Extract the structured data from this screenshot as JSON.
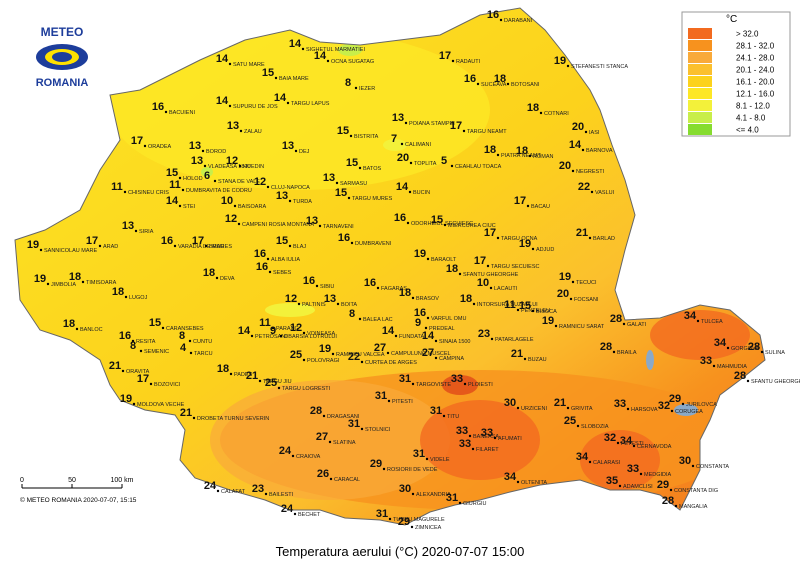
{
  "logo": {
    "top": "METEO",
    "bottom": "ROMANIA"
  },
  "title": "Temperatura aerului (°C) 2020-07-07 15:00",
  "copyright": "© METEO ROMANIA 2020-07-07, 15:15",
  "scale": {
    "labels": [
      "0",
      "50",
      "100 km"
    ]
  },
  "legend": {
    "unit": "°C",
    "items": [
      {
        "label": "> 32.0",
        "color": "#f26a1f"
      },
      {
        "label": "28.1 - 32.0",
        "color": "#f7921e"
      },
      {
        "label": "24.1 - 28.0",
        "color": "#f9aa3a"
      },
      {
        "label": "20.1 - 24.0",
        "color": "#fbc02d"
      },
      {
        "label": "16.1 - 20.0",
        "color": "#fcd21c"
      },
      {
        "label": "12.1 - 16.0",
        "color": "#fde725"
      },
      {
        "label": "8.1 - 12.0",
        "color": "#f3f13a"
      },
      {
        "label": "4.1 - 8.0",
        "color": "#c8ee4a"
      },
      {
        "label": "<= 4.0",
        "color": "#86dc2f"
      }
    ]
  },
  "stations": [
    {
      "name": "DARABANI",
      "value": 16
    },
    {
      "name": "SIGHETUL MARMATIEI",
      "value": 14
    },
    {
      "name": "SATU MARE",
      "value": 14
    },
    {
      "name": "BAIA MARE",
      "value": 15
    },
    {
      "name": "OCNA SUGATAG",
      "value": 14
    },
    {
      "name": "RADAUTI",
      "value": 17
    },
    {
      "name": "STEFANESTI STANCA",
      "value": 19
    },
    {
      "name": "IEZER",
      "value": 8
    },
    {
      "name": "BOTOSANI",
      "value": 18
    },
    {
      "name": "SUCEAVA",
      "value": 16
    },
    {
      "name": "SUPURU DE JOS",
      "value": 14
    },
    {
      "name": "TARGU LAPUS",
      "value": 14
    },
    {
      "name": "COTNARI",
      "value": 18
    },
    {
      "name": "POIANA STAMPEI",
      "value": 13
    },
    {
      "name": "BACUIENI",
      "value": 16
    },
    {
      "name": "ZALAU",
      "value": 13
    },
    {
      "name": "BISTRITA",
      "value": 15
    },
    {
      "name": "TARGU NEAMT",
      "value": 17
    },
    {
      "name": "IASI",
      "value": 20
    },
    {
      "name": "ORADEA",
      "value": 17
    },
    {
      "name": "BOROD",
      "value": 13
    },
    {
      "name": "CALIMANI",
      "value": 7
    },
    {
      "name": "BARNOVA",
      "value": 14
    },
    {
      "name": "PIATRA NEAMT",
      "value": 18
    },
    {
      "name": "ROMAN",
      "value": 18
    },
    {
      "name": "VLADEASA 1800",
      "value": 13
    },
    {
      "name": "HUEDIN",
      "value": 12
    },
    {
      "name": "DEJ",
      "value": 13
    },
    {
      "name": "TOPLITA",
      "value": 20
    },
    {
      "name": "CEAHLAU TOACA",
      "value": 5
    },
    {
      "name": "NEGRESTI",
      "value": 20
    },
    {
      "name": "HOLOD",
      "value": 15
    },
    {
      "name": "STANA DE VALE",
      "value": 6
    },
    {
      "name": "CLUJ-NAPOCA",
      "value": 12
    },
    {
      "name": "BATOS",
      "value": 15
    },
    {
      "name": "CHISINEU CRIS",
      "value": 11
    },
    {
      "name": "DUMBRAVITA DE CODRU",
      "value": 11
    },
    {
      "name": "VASLUI",
      "value": 22
    },
    {
      "name": "BUCIN",
      "value": 14
    },
    {
      "name": "SARMASU",
      "value": 13
    },
    {
      "name": "BACAU",
      "value": 17
    },
    {
      "name": "TURDA",
      "value": 13
    },
    {
      "name": "BAISOARA",
      "value": 10
    },
    {
      "name": "TARGU MURES",
      "value": 15
    },
    {
      "name": "STEI",
      "value": 14
    },
    {
      "name": "CAMPENI ROSIA MONTANA",
      "value": 12
    },
    {
      "name": "TARNAVENI",
      "value": 13
    },
    {
      "name": "ODORHEIUL SECUIESC",
      "value": 16
    },
    {
      "name": "MIERCUREA CIUC",
      "value": 15
    },
    {
      "name": "SANNICOLAU MARE",
      "value": 19
    },
    {
      "name": "ARAD",
      "value": 17
    },
    {
      "name": "SIRIA",
      "value": 13
    },
    {
      "name": "VARADIA DE MURES",
      "value": 16
    },
    {
      "name": "DUMBRAVENI",
      "value": 16
    },
    {
      "name": "BLAJ",
      "value": 15
    },
    {
      "name": "ALBA IULIA",
      "value": 16
    },
    {
      "name": "SEBES",
      "value": 16
    },
    {
      "name": "TARGU OCNA",
      "value": 17
    },
    {
      "name": "ADJUD",
      "value": 19
    },
    {
      "name": "BARLAD",
      "value": 21
    },
    {
      "name": "BRAD",
      "value": 17
    },
    {
      "name": "BARAOLT",
      "value": 19
    },
    {
      "name": "TARGU SECUIESC",
      "value": 17
    },
    {
      "name": "JIMBOLIA",
      "value": 19
    },
    {
      "name": "TIMISOARA",
      "value": 18
    },
    {
      "name": "DEVA",
      "value": 18
    },
    {
      "name": "SIBIU",
      "value": 16
    },
    {
      "name": "FAGARAS",
      "value": 16
    },
    {
      "name": "SFANTU GHEORGHE",
      "value": 18
    },
    {
      "name": "LACAUTI",
      "value": 10
    },
    {
      "name": "TECUCI",
      "value": 19
    },
    {
      "name": "LUGOJ",
      "value": 18
    },
    {
      "name": "PALTINIS",
      "value": 12
    },
    {
      "name": "BOITA",
      "value": 13
    },
    {
      "name": "BALEA LAC",
      "value": 8
    },
    {
      "name": "BRASOV",
      "value": 18
    },
    {
      "name": "INTORSURA BUZAULUI",
      "value": 18
    },
    {
      "name": "FOCSANI",
      "value": 20
    },
    {
      "name": "BANLOC",
      "value": 18
    },
    {
      "name": "CARANSEBES",
      "value": 15
    },
    {
      "name": "RESITA",
      "value": 16
    },
    {
      "name": "PETROSANI",
      "value": 14
    },
    {
      "name": "CUNTU",
      "value": 8
    },
    {
      "name": "PARANG",
      "value": 11
    },
    {
      "name": "VOINEASA",
      "value": 12
    },
    {
      "name": "OBARSIA LOTRULUI",
      "value": 9
    },
    {
      "name": "VARFUL OMU",
      "value": 16
    },
    {
      "name": "PREDEAL",
      "value": 9
    },
    {
      "name": "PENTELEU",
      "value": 11
    },
    {
      "name": "BISOCA",
      "value": 15
    },
    {
      "name": "GALATI",
      "value": 28
    },
    {
      "name": "TULCEA",
      "value": 34
    },
    {
      "name": "GORGOVA",
      "value": 34
    },
    {
      "name": "SULINA",
      "value": 28
    },
    {
      "name": "FUNDATA",
      "value": 14
    },
    {
      "name": "SINAIA 1500",
      "value": 14
    },
    {
      "name": "PATARLAGELE",
      "value": 23
    },
    {
      "name": "RAMNICU SARAT",
      "value": 19
    },
    {
      "name": "BRAILA",
      "value": 28
    },
    {
      "name": "SEMENIC",
      "value": 8
    },
    {
      "name": "TARCU",
      "value": 4
    },
    {
      "name": "CURTEA DE ARGES",
      "value": 22
    },
    {
      "name": "RAMNICU VALCEA",
      "value": 19
    },
    {
      "name": "CAMPULUNG MUSCEL",
      "value": 27
    },
    {
      "name": "CAMPINA",
      "value": 27
    },
    {
      "name": "BUZAU",
      "value": 21
    },
    {
      "name": "TARGU JIU",
      "value": 21
    },
    {
      "name": "POLOVRAGI",
      "value": 25
    },
    {
      "name": "ORAVITA",
      "value": 21
    },
    {
      "name": "BOZOVICI",
      "value": 17
    },
    {
      "name": "PADES",
      "value": 18
    },
    {
      "name": "MAHMUDIA",
      "value": 33
    },
    {
      "name": "SFANTU GHEORGHE",
      "value": 28
    },
    {
      "name": "MOLDOVA VECHE",
      "value": 19
    },
    {
      "name": "TARGU LOGRESTI",
      "value": 25
    },
    {
      "name": "PLOIESTI",
      "value": 33
    },
    {
      "name": "TARGOVISTE",
      "value": 31
    },
    {
      "name": "PITESTI",
      "value": 31
    },
    {
      "name": "URZICENI",
      "value": 30
    },
    {
      "name": "GRIVITA",
      "value": 21
    },
    {
      "name": "JURILOVCA",
      "value": 29
    },
    {
      "name": "CERNAVODA",
      "value": 34
    },
    {
      "name": "CORUGEA",
      "value": 32
    },
    {
      "name": "BANEASA",
      "value": 33
    },
    {
      "name": "AFUMATI",
      "value": 33
    },
    {
      "name": "DROBETA TURNU SEVERIN",
      "value": 21
    },
    {
      "name": "DRAGASANI",
      "value": 28
    },
    {
      "name": "SLOBOZIA",
      "value": 25
    },
    {
      "name": "HARSOVA",
      "value": 33
    },
    {
      "name": "STOLNICI",
      "value": 31
    },
    {
      "name": "TITU",
      "value": 31
    },
    {
      "name": "CALAFAT",
      "value": 24
    },
    {
      "name": "BAILESTI",
      "value": 23
    },
    {
      "name": "CRAIOVA",
      "value": 24
    },
    {
      "name": "SLATINA",
      "value": 27
    },
    {
      "name": "FETESTI",
      "value": 32
    },
    {
      "name": "MEDGIDIA",
      "value": 33
    },
    {
      "name": "CONSTANTA",
      "value": 30
    },
    {
      "name": "MANGALIA",
      "value": 28
    },
    {
      "name": "CALARASI",
      "value": 34
    },
    {
      "name": "OLTENITA",
      "value": 34
    },
    {
      "name": "ADAMCLISI",
      "value": 35
    },
    {
      "name": "ROSIORII DE VEDE",
      "value": 29
    },
    {
      "name": "VIDELE",
      "value": 31
    },
    {
      "name": "CARACAL",
      "value": 26
    },
    {
      "name": "ALEXANDRIA",
      "value": 30
    },
    {
      "name": "BECHET",
      "value": 24
    },
    {
      "name": "TURNU MAGURELE",
      "value": 31
    },
    {
      "name": "ZIMNICEA",
      "value": 29
    },
    {
      "name": "GIURGIU",
      "value": 31
    },
    {
      "name": "FILARET",
      "value": 33
    },
    {
      "name": "CONSTANTA DIG",
      "value": 29
    }
  ]
}
